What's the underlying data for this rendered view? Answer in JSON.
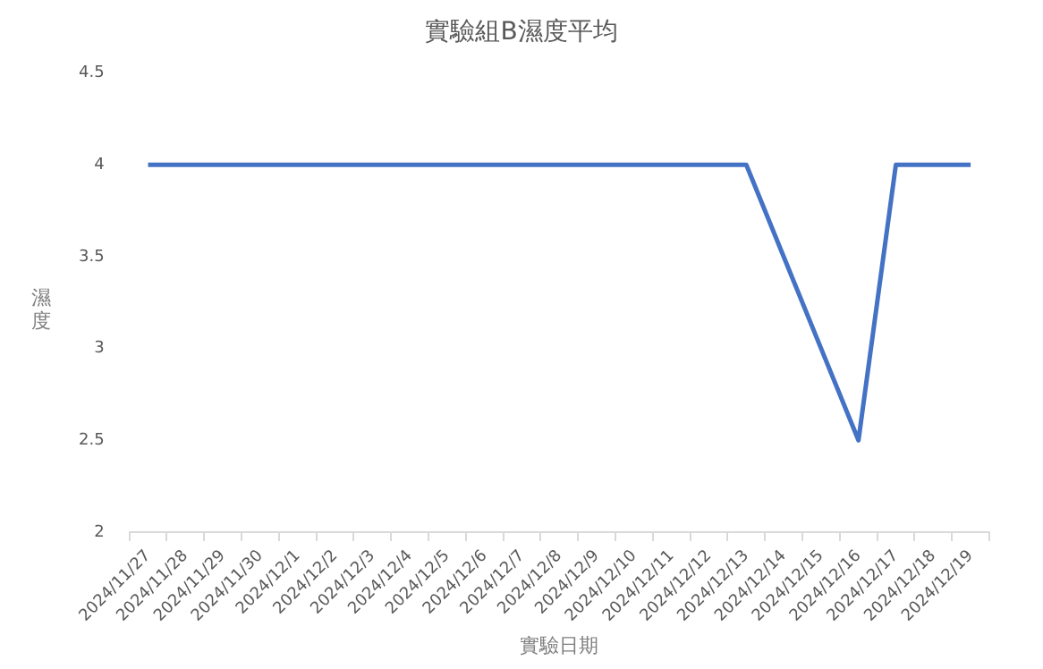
{
  "chart_data": {
    "type": "line",
    "title": "實驗組B濕度平均",
    "xlabel": "實驗日期",
    "ylabel": "濕度",
    "categories": [
      "2024/11/27",
      "2024/11/28",
      "2024/11/29",
      "2024/11/30",
      "2024/12/1",
      "2024/12/2",
      "2024/12/3",
      "2024/12/4",
      "2024/12/5",
      "2024/12/6",
      "2024/12/7",
      "2024/12/8",
      "2024/12/9",
      "2024/12/10",
      "2024/12/11",
      "2024/12/12",
      "2024/12/13",
      "2024/12/14",
      "2024/12/15",
      "2024/12/16",
      "2024/12/17",
      "2024/12/18",
      "2024/12/19"
    ],
    "series": [
      {
        "color": "#4472c4",
        "values": [
          4,
          4,
          4,
          4,
          4,
          4,
          4,
          4,
          4,
          4,
          4,
          4,
          4,
          4,
          4,
          4,
          4,
          3.5,
          3,
          2.5,
          4,
          4,
          4
        ]
      }
    ],
    "ylim": [
      2,
      4.5
    ],
    "yticks": [
      2,
      2.5,
      3,
      3.5,
      4,
      4.5
    ],
    "grid": false,
    "legend": false,
    "marker": "none",
    "line_style": "solid"
  }
}
